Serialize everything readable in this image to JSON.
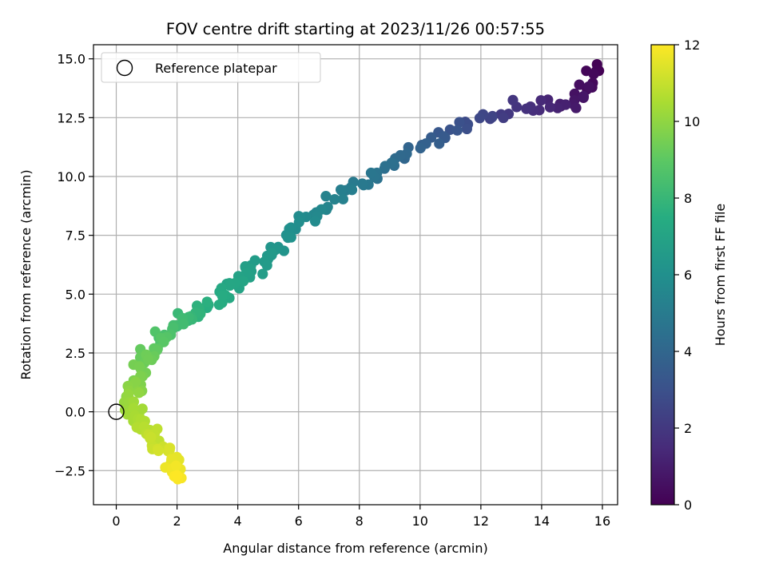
{
  "chart_data": {
    "type": "scatter",
    "title": "FOV centre drift starting at 2023/11/26 00:57:55",
    "xlabel": "Angular distance from reference (arcmin)",
    "ylabel": "Rotation from reference (arcmin)",
    "xlim": [
      -0.75,
      16.5
    ],
    "ylim": [
      -3.95,
      15.6
    ],
    "xticks": [
      0,
      2,
      4,
      6,
      8,
      10,
      12,
      14,
      16
    ],
    "xtick_labels": [
      "0",
      "2",
      "4",
      "6",
      "8",
      "10",
      "12",
      "14",
      "16"
    ],
    "yticks": [
      -2.5,
      0.0,
      2.5,
      5.0,
      7.5,
      10.0,
      12.5,
      15.0
    ],
    "ytick_labels": [
      "−2.5",
      "0.0",
      "2.5",
      "5.0",
      "7.5",
      "10.0",
      "12.5",
      "15.0"
    ],
    "grid": true,
    "legend": {
      "placement": "upper-left",
      "entries": [
        "Reference platepar"
      ]
    },
    "reference_point": {
      "x": 0,
      "y": 0
    },
    "colorbar": {
      "label": "Hours from first FF file",
      "colormap": "viridis",
      "range": [
        0,
        12
      ],
      "ticks": [
        0,
        2,
        4,
        6,
        8,
        10,
        12
      ],
      "tick_labels": [
        "0",
        "2",
        "4",
        "6",
        "8",
        "10",
        "12"
      ]
    },
    "anchors": [
      {
        "x": 15.8,
        "y": 14.6,
        "h": 0.0
      },
      {
        "x": 15.1,
        "y": 13.1,
        "h": 0.8
      },
      {
        "x": 13.1,
        "y": 13.0,
        "h": 1.9
      },
      {
        "x": 11.0,
        "y": 11.9,
        "h": 3.2
      },
      {
        "x": 9.2,
        "y": 10.5,
        "h": 4.3
      },
      {
        "x": 7.8,
        "y": 9.6,
        "h": 5.0
      },
      {
        "x": 6.4,
        "y": 8.3,
        "h": 5.7
      },
      {
        "x": 5.2,
        "y": 6.9,
        "h": 6.3
      },
      {
        "x": 4.3,
        "y": 5.8,
        "h": 6.8
      },
      {
        "x": 3.5,
        "y": 4.9,
        "h": 7.3
      },
      {
        "x": 2.6,
        "y": 4.2,
        "h": 7.8
      },
      {
        "x": 1.7,
        "y": 3.4,
        "h": 8.5
      },
      {
        "x": 1.0,
        "y": 2.5,
        "h": 9.2
      },
      {
        "x": 0.7,
        "y": 1.3,
        "h": 9.7
      },
      {
        "x": 0.5,
        "y": 0.4,
        "h": 10.2
      },
      {
        "x": 0.8,
        "y": -0.6,
        "h": 10.6
      },
      {
        "x": 1.3,
        "y": -1.2,
        "h": 11.0
      },
      {
        "x": 1.8,
        "y": -2.0,
        "h": 11.5
      },
      {
        "x": 2.0,
        "y": -2.7,
        "h": 12.0
      }
    ]
  }
}
